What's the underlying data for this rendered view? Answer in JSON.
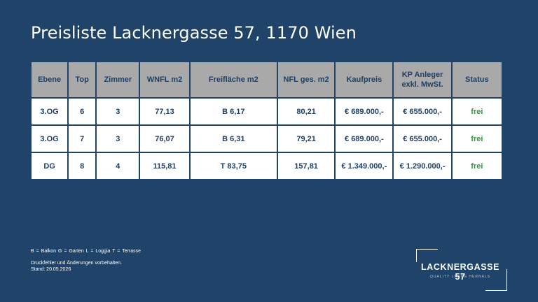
{
  "title": "Preisliste Lacknergasse 57, 1170 Wien",
  "table": {
    "headers": [
      "Ebene",
      "Top",
      "Zimmer",
      "WNFL m2",
      "Freifläche m2",
      "NFL ges. m2",
      "Kaufpreis",
      "KP Anleger exkl. MwSt.",
      "Status"
    ],
    "rows": [
      [
        "3.OG",
        "6",
        "3",
        "77,13",
        "B 6,17",
        "80,21",
        "€ 689.000,-",
        "€ 655.000,-",
        "frei"
      ],
      [
        "3.OG",
        "7",
        "3",
        "76,07",
        "B 6,31",
        "79,21",
        "€ 689.000,-",
        "€ 655.000,-",
        "frei"
      ],
      [
        "DG",
        "8",
        "4",
        "115,81",
        "T 83,75",
        "157,81",
        "€ 1.349.000,-",
        "€ 1.290.000,-",
        "frei"
      ]
    ]
  },
  "legend": "B = Balkon   G = Garten   L = Loggia   T = Terrasse",
  "note": {
    "line1": "Druckfehler und Änderungen vorbehalten.",
    "line2": "Stand: 20.05.2026"
  },
  "logo": {
    "name": "LACKNERGASSE 57",
    "tagline": "QUALITY LIVING HERNALS"
  },
  "colors": {
    "background": "#1f4369",
    "header_cell": "#a9a9a9",
    "text_dark": "#1f3f66",
    "status_free": "#2e9a3b"
  }
}
